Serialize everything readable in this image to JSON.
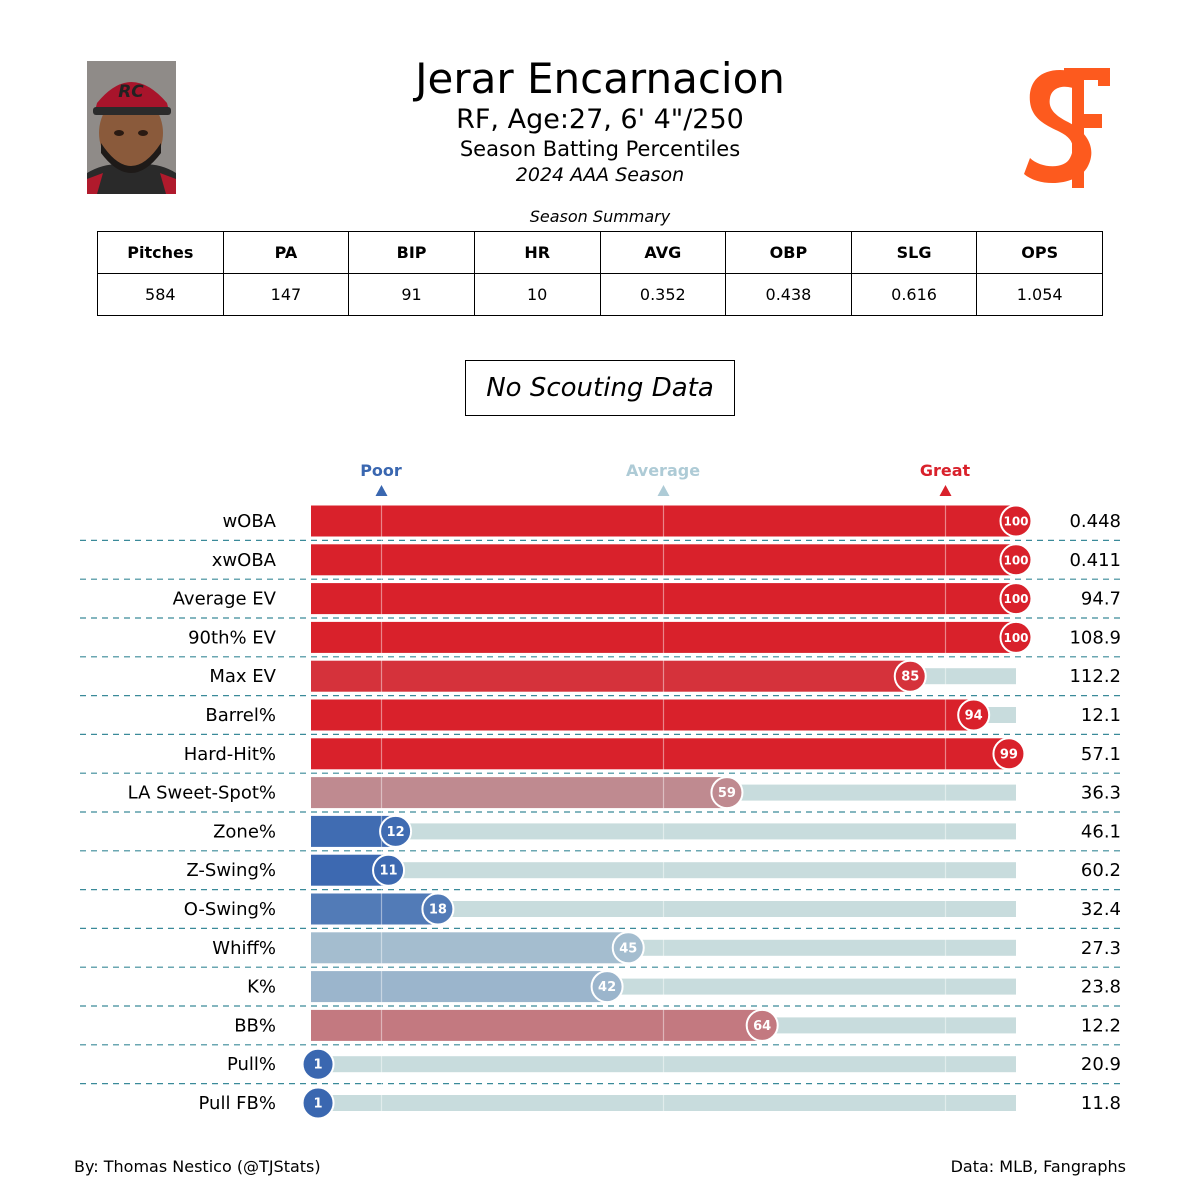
{
  "header": {
    "name": "Jerar Encarnacion",
    "position_line": "RF, Age:27, 6' 4\"/250",
    "subtitle": "Season Batting Percentiles",
    "season": "2024 AAA Season",
    "cap_logo_text": "RC"
  },
  "summary": {
    "title": "Season Summary",
    "headers": [
      "Pitches",
      "PA",
      "BIP",
      "HR",
      "AVG",
      "OBP",
      "SLG",
      "OPS"
    ],
    "values": [
      "584",
      "147",
      "91",
      "10",
      "0.352",
      "0.438",
      "0.616",
      "1.054"
    ]
  },
  "scouting": "No Scouting Data",
  "legend": {
    "poor": "Poor",
    "average": "Average",
    "great": "Great"
  },
  "colors": {
    "poor": "#3a67b0",
    "average": "#aecbd6",
    "great": "#d9212b",
    "track": "#c8dcdd",
    "divider": "#3a8a99"
  },
  "chart_data": {
    "type": "bar",
    "title": "Season Batting Percentiles",
    "xlim": [
      0,
      100
    ],
    "reference_lines": [
      10,
      50,
      90
    ],
    "categories": [
      "wOBA",
      "xwOBA",
      "Average EV",
      "90th% EV",
      "Max EV",
      "Barrel%",
      "Hard-Hit%",
      "LA Sweet-Spot%",
      "Zone%",
      "Z-Swing%",
      "O-Swing%",
      "Whiff%",
      "K%",
      "BB%",
      "Pull%",
      "Pull FB%"
    ],
    "percentiles": [
      100,
      100,
      100,
      100,
      85,
      94,
      99,
      59,
      12,
      11,
      18,
      45,
      42,
      64,
      1,
      1
    ],
    "stat_values": [
      "0.448",
      "0.411",
      "94.7",
      "108.9",
      "112.2",
      "12.1",
      "57.1",
      "36.3",
      "46.1",
      "60.2",
      "32.4",
      "27.3",
      "23.8",
      "12.2",
      "20.9",
      "11.8"
    ]
  },
  "footer": {
    "left": "By: Thomas Nestico (@TJStats)",
    "right": "Data: MLB, Fangraphs"
  }
}
